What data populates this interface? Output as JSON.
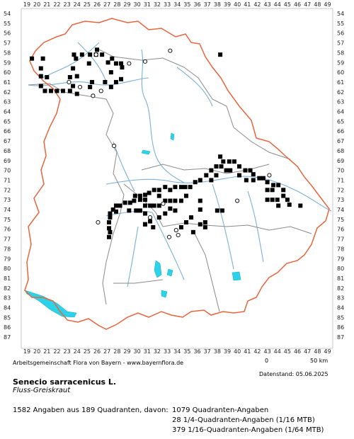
{
  "map": {
    "x_ticks": [
      "19",
      "20",
      "21",
      "22",
      "23",
      "24",
      "25",
      "26",
      "27",
      "28",
      "29",
      "30",
      "31",
      "32",
      "33",
      "34",
      "35",
      "36",
      "37",
      "38",
      "39",
      "40",
      "41",
      "42",
      "43",
      "44",
      "45",
      "46",
      "47",
      "48",
      "49"
    ],
    "y_ticks": [
      "54",
      "55",
      "56",
      "57",
      "58",
      "59",
      "60",
      "61",
      "62",
      "63",
      "64",
      "65",
      "66",
      "67",
      "68",
      "69",
      "70",
      "71",
      "72",
      "73",
      "74",
      "75",
      "76",
      "77",
      "78",
      "79",
      "80",
      "81",
      "82",
      "83",
      "84",
      "85",
      "86",
      "87"
    ],
    "colors": {
      "state_border": "#e8643c",
      "regions": "#8a8a8a",
      "rivers": "#7ab0d8",
      "lakes": "#2cd3e8",
      "marker": "#000000",
      "open_marker": "#ffffff"
    },
    "markers": {
      "filled": [
        [
          19.5,
          58.6
        ],
        [
          20.6,
          58.6
        ],
        [
          20.4,
          59.6
        ],
        [
          20.4,
          60.4
        ],
        [
          21,
          60.5
        ],
        [
          20.4,
          61.4
        ],
        [
          20.8,
          61.9
        ],
        [
          21.4,
          61.9
        ],
        [
          22,
          61.9
        ],
        [
          22.6,
          61.9
        ],
        [
          23.3,
          61.9
        ],
        [
          24,
          62.2
        ],
        [
          23.6,
          61.4
        ],
        [
          23.3,
          60.5
        ],
        [
          23.6,
          59.6
        ],
        [
          23.9,
          58.6
        ],
        [
          23.7,
          58.2
        ],
        [
          24.5,
          58.2
        ],
        [
          25.3,
          58.2
        ],
        [
          25.9,
          58.2
        ],
        [
          26.5,
          58.2
        ],
        [
          26,
          57.7
        ],
        [
          25.2,
          59.1
        ],
        [
          25.5,
          61
        ],
        [
          25.3,
          61.5
        ],
        [
          26.8,
          61
        ],
        [
          27.1,
          59
        ],
        [
          27.5,
          58.6
        ],
        [
          27.9,
          59.1
        ],
        [
          28.4,
          59.1
        ],
        [
          27.4,
          60
        ],
        [
          27.4,
          61.5
        ],
        [
          28.4,
          60.7
        ],
        [
          27.9,
          61
        ],
        [
          28.5,
          59.5
        ],
        [
          24,
          60.4
        ],
        [
          38.3,
          58.2
        ],
        [
          38.3,
          68.6
        ],
        [
          38.6,
          69.1
        ],
        [
          39.2,
          69.1
        ],
        [
          39.7,
          69.1
        ],
        [
          40.2,
          69.6
        ],
        [
          40.8,
          70
        ],
        [
          41.3,
          70
        ],
        [
          41.6,
          70.4
        ],
        [
          42.2,
          70.8
        ],
        [
          42.6,
          70.8
        ],
        [
          43,
          71.2
        ],
        [
          43.6,
          71.5
        ],
        [
          44.1,
          71.5
        ],
        [
          44.6,
          72
        ],
        [
          44.6,
          72.6
        ],
        [
          45,
          73
        ],
        [
          45.2,
          73.5
        ],
        [
          46.3,
          73.6
        ],
        [
          43,
          73
        ],
        [
          43.5,
          73
        ],
        [
          44,
          73
        ],
        [
          44.1,
          73.6
        ],
        [
          43.5,
          72
        ],
        [
          43,
          72
        ],
        [
          41.6,
          71
        ],
        [
          40.9,
          71
        ],
        [
          40.2,
          70.5
        ],
        [
          39.3,
          70
        ],
        [
          38.9,
          70
        ],
        [
          38.4,
          69.6
        ],
        [
          37.9,
          69.6
        ],
        [
          37.4,
          70
        ],
        [
          37.9,
          70.5
        ],
        [
          37.4,
          71
        ],
        [
          36.9,
          70.5
        ],
        [
          36.3,
          71
        ],
        [
          35.8,
          71.2
        ],
        [
          35.3,
          71.7
        ],
        [
          34.8,
          71.7
        ],
        [
          34.4,
          71.7
        ],
        [
          33.8,
          71.7
        ],
        [
          33.3,
          72
        ],
        [
          32.8,
          71.7
        ],
        [
          32.2,
          72
        ],
        [
          31.7,
          72
        ],
        [
          31.2,
          72.3
        ],
        [
          30.8,
          72.5
        ],
        [
          30.3,
          72.6
        ],
        [
          29.8,
          72.6
        ],
        [
          29.7,
          73.1
        ],
        [
          29.3,
          73.3
        ],
        [
          28.8,
          73.3
        ],
        [
          28.3,
          73.6
        ],
        [
          27.9,
          73.6
        ],
        [
          27.6,
          74
        ],
        [
          27.9,
          74.2
        ],
        [
          27.3,
          74.4
        ],
        [
          27.3,
          74.8
        ],
        [
          27.2,
          75.3
        ],
        [
          27.2,
          75.9
        ],
        [
          27.3,
          76.3
        ],
        [
          27.2,
          76.8
        ],
        [
          30.3,
          73
        ],
        [
          30.8,
          73
        ],
        [
          30.8,
          73.6
        ],
        [
          30.3,
          74.1
        ],
        [
          29.9,
          74.1
        ],
        [
          29.2,
          74.1
        ],
        [
          30.8,
          74.4
        ],
        [
          30.8,
          75.5
        ],
        [
          31.3,
          75.2
        ],
        [
          31.6,
          75.8
        ],
        [
          32.2,
          74.8
        ],
        [
          32.8,
          74.4
        ],
        [
          33.3,
          73.9
        ],
        [
          33.3,
          73.1
        ],
        [
          33.8,
          73.1
        ],
        [
          34.4,
          73.1
        ],
        [
          34.9,
          72.6
        ],
        [
          33.8,
          74.1
        ],
        [
          32.8,
          73.1
        ],
        [
          32.2,
          72.6
        ],
        [
          31.7,
          73.6
        ],
        [
          31.3,
          73.6
        ],
        [
          32.2,
          73.6
        ],
        [
          30.8,
          75.5
        ],
        [
          34.4,
          75.8
        ],
        [
          34.9,
          75.3
        ],
        [
          35.4,
          74.8
        ],
        [
          36.3,
          73.1
        ],
        [
          36.3,
          74
        ],
        [
          36.8,
          75.3
        ],
        [
          36.8,
          75.8
        ],
        [
          36.3,
          75.5
        ],
        [
          38,
          74.1
        ],
        [
          38.5,
          74.1
        ],
        [
          35.6,
          76.3
        ]
      ],
      "open": [
        [
          25.9,
          58.2
        ],
        [
          29.2,
          59.1
        ],
        [
          30.8,
          58.9
        ],
        [
          33.3,
          57.8
        ],
        [
          23.2,
          61
        ],
        [
          24.3,
          61.5
        ],
        [
          26.4,
          61.9
        ],
        [
          25.6,
          62.4
        ],
        [
          27.7,
          67.5
        ],
        [
          26.1,
          75.3
        ],
        [
          32.6,
          73.4
        ],
        [
          31.3,
          74.8
        ],
        [
          33.9,
          76.1
        ],
        [
          34.1,
          76.6
        ],
        [
          33.2,
          76.8
        ],
        [
          40,
          73.1
        ],
        [
          43.2,
          70.5
        ]
      ]
    }
  },
  "footer": {
    "working_group": "Arbeitsgemeinschaft Flora von Bayern - www.bayernflora.de",
    "scale_zero": "0",
    "scale_distance": "50 km",
    "date_stamp": "Datenstand: 05.06.2025",
    "species_name": "Senecio sarracenicus L.",
    "common_name": "Fluss-Greiskraut",
    "summary": "1582 Angaben aus 189 Quadranten, davon:",
    "quadrant_count": "1079 Quadranten-Angaben",
    "mtb16_count": "28 1/4-Quadranten-Angaben (1/16 MTB)",
    "mtb64_count": "379 1/16-Quadranten-Angaben (1/64 MTB)"
  }
}
